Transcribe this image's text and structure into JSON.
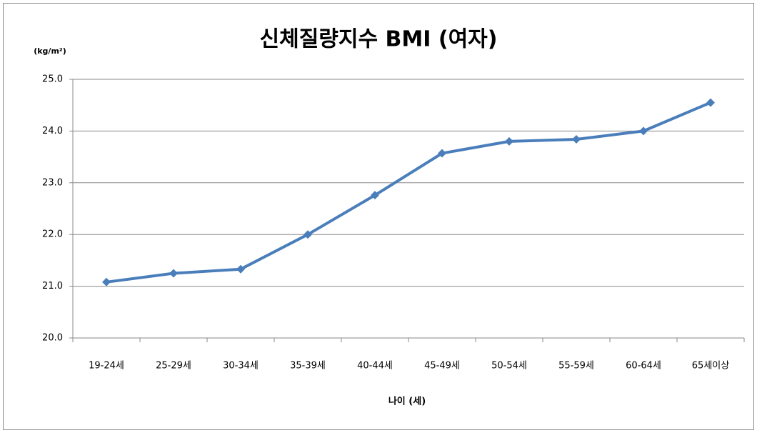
{
  "chart_data": {
    "type": "line",
    "title": "신체질량지수 BMI (여자)",
    "y_axis_label": "(kg/m²)",
    "x_axis_label": "나이 (세)",
    "categories": [
      "19-24세",
      "25-29세",
      "30-34세",
      "35-39세",
      "40-44세",
      "45-49세",
      "50-54세",
      "55-59세",
      "60-64세",
      "65세이상"
    ],
    "series": [
      {
        "name": "BMI",
        "color": "#4a7ebb",
        "values": [
          21.08,
          21.25,
          21.33,
          22.0,
          22.76,
          23.57,
          23.8,
          23.84,
          24.0,
          24.55
        ]
      }
    ],
    "ylim": [
      20,
      25
    ],
    "yticks": [
      {
        "value": 20,
        "label": "20.0"
      },
      {
        "value": 21,
        "label": "21.0"
      },
      {
        "value": 22,
        "label": "22.0"
      },
      {
        "value": 23,
        "label": "23.0"
      },
      {
        "value": 24,
        "label": "24.0"
      },
      {
        "value": 25,
        "label": "25.0"
      }
    ],
    "grid": true
  }
}
